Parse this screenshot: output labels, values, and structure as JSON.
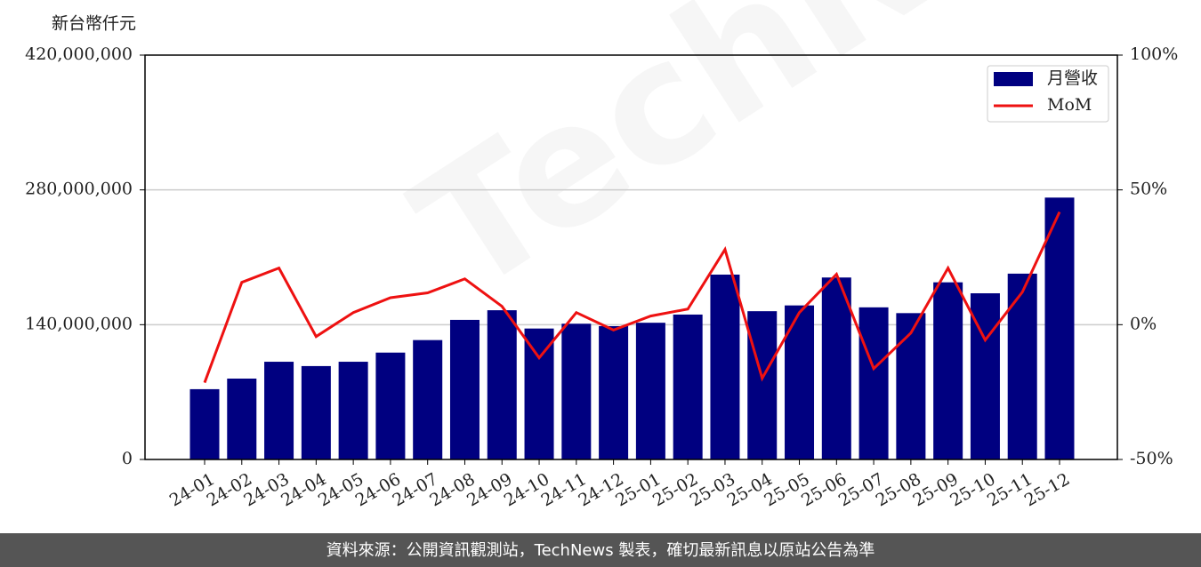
{
  "chart_data": {
    "type": "bar_line",
    "y_axis_label": "新台幣仟元",
    "watermark": "TechNews",
    "footer": "資料來源：公開資訊觀測站，TechNews 製表，確切最新訊息以原站公告為準",
    "categories": [
      "24-01",
      "24-02",
      "24-03",
      "24-04",
      "24-05",
      "24-06",
      "24-07",
      "24-08",
      "24-09",
      "24-10",
      "24-11",
      "24-12",
      "25-01",
      "25-02",
      "25-03",
      "25-04",
      "25-05",
      "25-06",
      "25-07",
      "25-08",
      "25-09",
      "25-10",
      "25-11",
      "25-12"
    ],
    "series": [
      {
        "name": "月營收",
        "type": "bar",
        "color": "#000080",
        "values": [
          73000000,
          84000000,
          101500000,
          97000000,
          101500000,
          111000000,
          124000000,
          145000000,
          155000000,
          136000000,
          141000000,
          138500000,
          142000000,
          150500000,
          192000000,
          154000000,
          160000000,
          189000000,
          158000000,
          152000000,
          184000000,
          172600000,
          193000000,
          272000000
        ]
      },
      {
        "name": "MoM",
        "type": "line",
        "axis": "y2",
        "color": "#ee1111",
        "values": [
          -21.5,
          15.7,
          21,
          -4.4,
          4.5,
          10,
          11.8,
          17,
          6.8,
          -12.3,
          4.5,
          -2,
          3.2,
          5.8,
          27.9,
          -19.9,
          4.5,
          18.7,
          -16.3,
          -3.1,
          21,
          -5.7,
          12.1,
          41.8
        ]
      }
    ],
    "ylim": [
      0,
      420000000
    ],
    "yticks": [
      {
        "value": 0,
        "label": "0"
      },
      {
        "value": 140000000,
        "label": "140,000,000"
      },
      {
        "value": 280000000,
        "label": "280,000,000"
      },
      {
        "value": 420000000,
        "label": "420,000,000"
      }
    ],
    "y2lim": [
      -50,
      100
    ],
    "y2ticks": [
      {
        "value": -50,
        "label": "-50%"
      },
      {
        "value": 0,
        "label": "0%"
      },
      {
        "value": 50,
        "label": "50%"
      },
      {
        "value": 100,
        "label": "100%"
      }
    ],
    "grid": true,
    "legend": "upper right"
  }
}
